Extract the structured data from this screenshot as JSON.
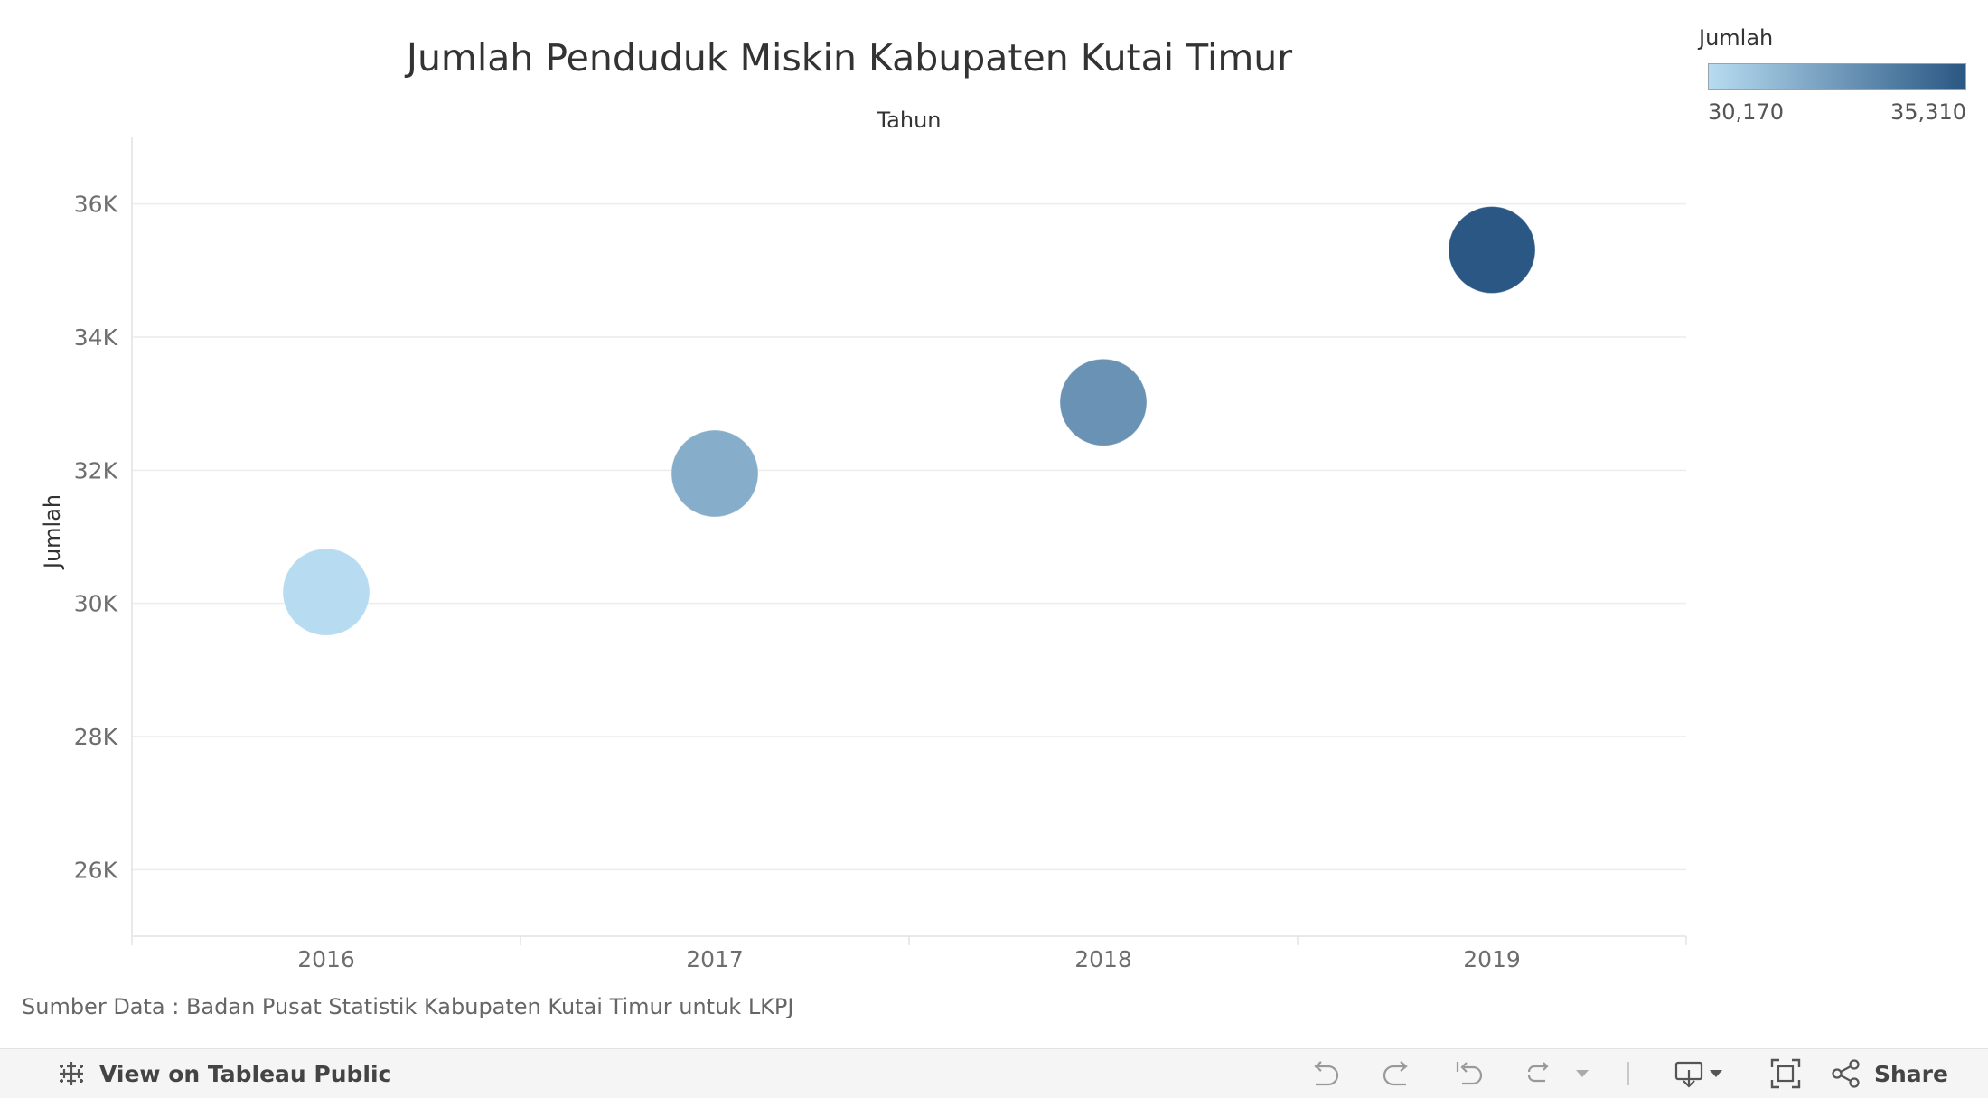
{
  "chart_data": {
    "type": "scatter",
    "title": "Jumlah Penduduk Miskin Kabupaten Kutai Timur",
    "xlabel": "Tahun",
    "ylabel": "Jumlah",
    "categories": [
      "2016",
      "2017",
      "2018",
      "2019"
    ],
    "values": [
      30170,
      31950,
      33020,
      35310
    ],
    "yticks": [
      26000,
      28000,
      30000,
      32000,
      34000,
      36000
    ],
    "ytick_labels": [
      "26K",
      "28K",
      "30K",
      "32K",
      "34K",
      "36K"
    ],
    "ylim": [
      25000,
      37000
    ],
    "grid": true,
    "color_scale": {
      "min": 30170,
      "max": 35310,
      "min_label": "30,170",
      "max_label": "35,310",
      "low_color": "#b7dcf1",
      "high_color": "#2a5783"
    },
    "legend_title": "Jumlah",
    "legend_position": "top-right"
  },
  "source_note": "Sumber Data : Badan Pusat Statistik Kabupaten Kutai Timur untuk LKPJ",
  "toolbar": {
    "view_label": "View on Tableau Public",
    "share_label": "Share",
    "icons": [
      "tableau-logo-icon",
      "undo-icon",
      "redo-icon",
      "revert-icon",
      "refresh-icon",
      "pause-dropdown-icon",
      "download-icon",
      "fullscreen-icon",
      "share-icon"
    ]
  }
}
